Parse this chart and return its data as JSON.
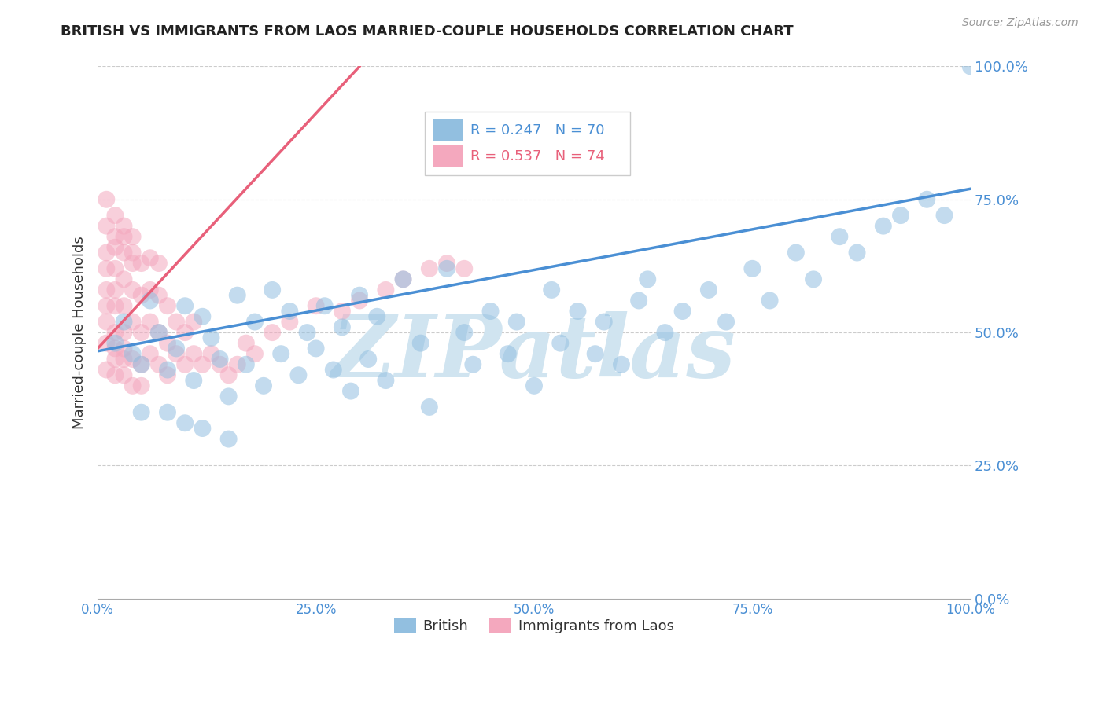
{
  "title": "BRITISH VS IMMIGRANTS FROM LAOS MARRIED-COUPLE HOUSEHOLDS CORRELATION CHART",
  "source": "Source: ZipAtlas.com",
  "ylabel": "Married-couple Households",
  "ytick_labels": [
    "0.0%",
    "25.0%",
    "50.0%",
    "75.0%",
    "100.0%"
  ],
  "ytick_values": [
    0,
    25,
    50,
    75,
    100
  ],
  "xtick_labels": [
    "0.0%",
    "25.0%",
    "50.0%",
    "75.0%",
    "100.0%"
  ],
  "xtick_values": [
    0,
    25,
    50,
    75,
    100
  ],
  "legend_blue_label": "British",
  "legend_pink_label": "Immigrants from Laos",
  "r_blue": "R = 0.247",
  "n_blue": "N = 70",
  "r_pink": "R = 0.537",
  "n_pink": "N = 74",
  "blue_color": "#92bfe0",
  "pink_color": "#f4a8be",
  "trend_blue": "#4a8fd4",
  "trend_pink": "#e8607a",
  "watermark": "ZIPatlas",
  "watermark_color": "#d0e4f0",
  "blue_scatter_x": [
    2,
    3,
    4,
    5,
    6,
    7,
    8,
    9,
    10,
    11,
    12,
    13,
    14,
    15,
    16,
    17,
    18,
    19,
    20,
    21,
    22,
    23,
    24,
    25,
    26,
    27,
    28,
    29,
    30,
    31,
    32,
    33,
    35,
    37,
    38,
    40,
    42,
    43,
    45,
    47,
    48,
    50,
    52,
    53,
    55,
    57,
    58,
    60,
    62,
    63,
    65,
    67,
    70,
    72,
    75,
    77,
    80,
    82,
    85,
    87,
    90,
    92,
    95,
    97,
    100,
    5,
    8,
    10,
    12,
    15
  ],
  "blue_scatter_y": [
    48,
    52,
    46,
    44,
    56,
    50,
    43,
    47,
    55,
    41,
    53,
    49,
    45,
    38,
    57,
    44,
    52,
    40,
    58,
    46,
    54,
    42,
    50,
    47,
    55,
    43,
    51,
    39,
    57,
    45,
    53,
    41,
    60,
    48,
    36,
    62,
    50,
    44,
    54,
    46,
    52,
    40,
    58,
    48,
    54,
    46,
    52,
    44,
    56,
    60,
    50,
    54,
    58,
    52,
    62,
    56,
    65,
    60,
    68,
    65,
    70,
    72,
    75,
    72,
    100,
    35,
    35,
    33,
    32,
    30
  ],
  "pink_scatter_x": [
    1,
    1,
    1,
    1,
    1,
    1,
    1,
    1,
    2,
    2,
    2,
    2,
    2,
    2,
    2,
    2,
    2,
    3,
    3,
    3,
    3,
    3,
    3,
    3,
    3,
    4,
    4,
    4,
    4,
    4,
    4,
    5,
    5,
    5,
    5,
    5,
    6,
    6,
    6,
    6,
    7,
    7,
    7,
    7,
    8,
    8,
    8,
    9,
    9,
    10,
    10,
    11,
    11,
    12,
    13,
    14,
    15,
    16,
    17,
    18,
    20,
    22,
    25,
    28,
    30,
    33,
    35,
    38,
    40,
    42,
    1,
    2,
    3,
    4
  ],
  "pink_scatter_y": [
    48,
    52,
    55,
    58,
    62,
    65,
    43,
    70,
    45,
    50,
    55,
    58,
    62,
    66,
    42,
    68,
    47,
    45,
    50,
    55,
    60,
    65,
    42,
    70,
    47,
    45,
    52,
    58,
    63,
    40,
    68,
    44,
    50,
    57,
    63,
    40,
    46,
    52,
    58,
    64,
    44,
    50,
    57,
    63,
    42,
    48,
    55,
    46,
    52,
    44,
    50,
    46,
    52,
    44,
    46,
    44,
    42,
    44,
    48,
    46,
    50,
    52,
    55,
    54,
    56,
    58,
    60,
    62,
    63,
    62,
    75,
    72,
    68,
    65
  ],
  "blue_trend_x": [
    0,
    100
  ],
  "blue_trend_y": [
    46.5,
    77
  ],
  "pink_trend_x": [
    0,
    30
  ],
  "pink_trend_y": [
    47,
    100
  ]
}
